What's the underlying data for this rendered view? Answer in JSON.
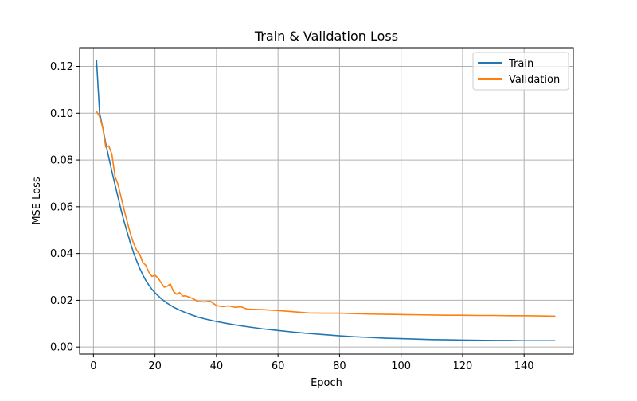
{
  "chart_data": {
    "type": "line",
    "title": "Train & Validation Loss",
    "xlabel": "Epoch",
    "ylabel": "MSE Loss",
    "xlim": [
      -4.5,
      156
    ],
    "ylim": [
      -0.003,
      0.128
    ],
    "xticks": [
      0,
      20,
      40,
      60,
      80,
      100,
      120,
      140
    ],
    "yticks": [
      0.0,
      0.02,
      0.04,
      0.06,
      0.08,
      0.1,
      0.12
    ],
    "xtick_labels": [
      "0",
      "20",
      "40",
      "60",
      "80",
      "100",
      "120",
      "140"
    ],
    "ytick_labels": [
      "0.00",
      "0.02",
      "0.04",
      "0.06",
      "0.08",
      "0.10",
      "0.12"
    ],
    "grid": true,
    "legend_position": "upper right",
    "series": [
      {
        "name": "Train",
        "color": "#1f77b4",
        "x": [
          1,
          2,
          3,
          4,
          5,
          6,
          7,
          8,
          9,
          10,
          11,
          12,
          13,
          14,
          15,
          16,
          17,
          18,
          19,
          20,
          22,
          24,
          26,
          28,
          30,
          32,
          34,
          36,
          38,
          40,
          45,
          50,
          55,
          60,
          65,
          70,
          75,
          80,
          85,
          90,
          95,
          100,
          105,
          110,
          115,
          120,
          125,
          130,
          135,
          140,
          145,
          150
        ],
        "y": [
          0.1225,
          0.1,
          0.094,
          0.087,
          0.081,
          0.075,
          0.0695,
          0.064,
          0.0585,
          0.0535,
          0.049,
          0.0445,
          0.0405,
          0.037,
          0.0338,
          0.031,
          0.0285,
          0.0265,
          0.0247,
          0.0232,
          0.0207,
          0.0187,
          0.0171,
          0.0158,
          0.0147,
          0.0137,
          0.0128,
          0.0121,
          0.0115,
          0.0109,
          0.0097,
          0.0087,
          0.0078,
          0.0071,
          0.0064,
          0.0058,
          0.0053,
          0.0048,
          0.0044,
          0.0041,
          0.0038,
          0.0036,
          0.0034,
          0.0032,
          0.0031,
          0.003,
          0.0029,
          0.0028,
          0.0028,
          0.0027,
          0.0027,
          0.0027
        ]
      },
      {
        "name": "Validation",
        "color": "#ff7f0e",
        "x": [
          1,
          2,
          3,
          4,
          5,
          6,
          7,
          8,
          9,
          10,
          11,
          12,
          13,
          14,
          15,
          16,
          17,
          18,
          19,
          20,
          21,
          22,
          23,
          24,
          25,
          26,
          27,
          28,
          29,
          30,
          32,
          34,
          36,
          38,
          40,
          42,
          44,
          46,
          48,
          50,
          55,
          60,
          65,
          70,
          75,
          80,
          85,
          90,
          95,
          100,
          105,
          110,
          115,
          120,
          125,
          130,
          135,
          140,
          145,
          150
        ],
        "y": [
          0.1008,
          0.0985,
          0.094,
          0.0855,
          0.086,
          0.0825,
          0.073,
          0.0695,
          0.064,
          0.0585,
          0.0535,
          0.0485,
          0.0445,
          0.0415,
          0.0398,
          0.0362,
          0.035,
          0.032,
          0.0302,
          0.0307,
          0.0295,
          0.0275,
          0.0256,
          0.026,
          0.027,
          0.0238,
          0.0226,
          0.0233,
          0.0218,
          0.0219,
          0.0209,
          0.0195,
          0.0193,
          0.0196,
          0.0177,
          0.0173,
          0.0176,
          0.017,
          0.0172,
          0.0162,
          0.016,
          0.0156,
          0.0151,
          0.0146,
          0.0145,
          0.0145,
          0.0143,
          0.0141,
          0.014,
          0.0139,
          0.0138,
          0.0137,
          0.0136,
          0.0136,
          0.0135,
          0.0135,
          0.0134,
          0.0134,
          0.0133,
          0.0132
        ]
      }
    ]
  }
}
